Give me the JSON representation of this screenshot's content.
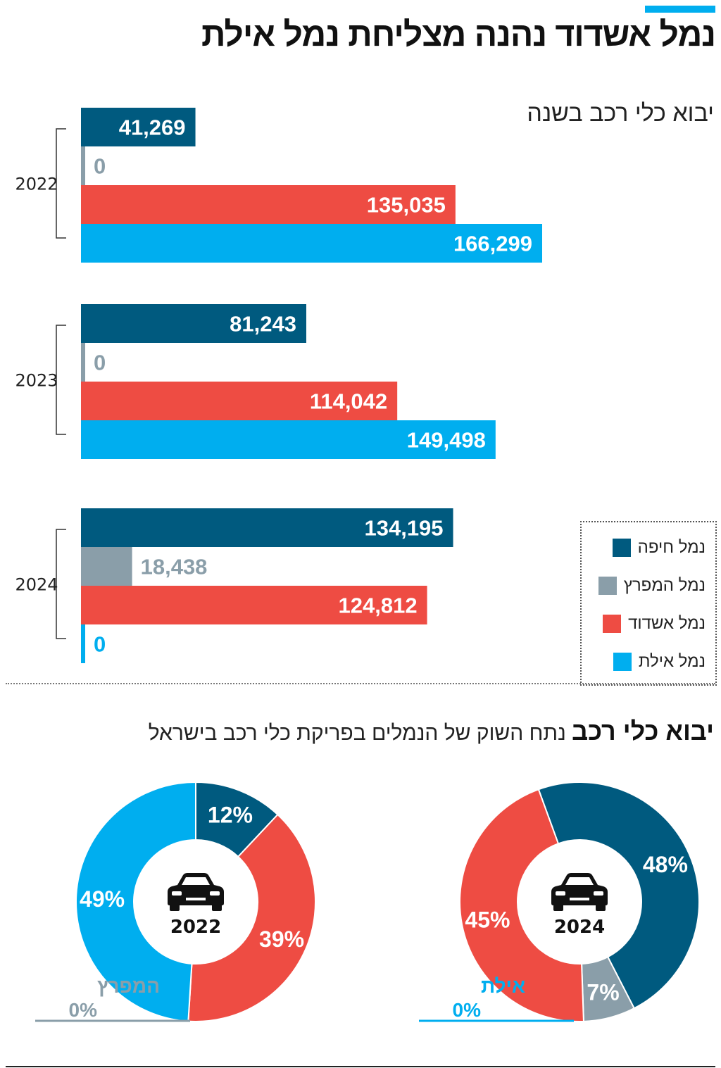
{
  "header": {
    "title": "נמל אשדוד נהנה מצליחת נמל אילת",
    "accent_color": "#00aeef"
  },
  "legend": {
    "items": [
      {
        "label": "נמל חיפה",
        "color": "#005a7f"
      },
      {
        "label": "נמל המפרץ",
        "color": "#8a9ea9"
      },
      {
        "label": "נמל אשדוד",
        "color": "#ee4c43"
      },
      {
        "label": "נמל אילת",
        "color": "#00aeef"
      }
    ]
  },
  "chart_data": [
    {
      "type": "bar",
      "orientation": "horizontal",
      "title": "יבוא כלי רכב בשנה",
      "categories": [
        "2022",
        "2023",
        "2024"
      ],
      "series": [
        {
          "name": "נמל חיפה",
          "color": "#005a7f",
          "values": [
            41269,
            81243,
            134195
          ],
          "labels": [
            "41,269",
            "81,243",
            "134,195"
          ]
        },
        {
          "name": "נמל המפרץ",
          "color": "#8a9ea9",
          "values": [
            0,
            0,
            18438
          ],
          "labels": [
            "0",
            "0",
            "18,438"
          ]
        },
        {
          "name": "נמל אשדוד",
          "color": "#ee4c43",
          "values": [
            135035,
            114042,
            124812
          ],
          "labels": [
            "135,035",
            "114,042",
            "124,812"
          ]
        },
        {
          "name": "נמל אילת",
          "color": "#00aeef",
          "values": [
            166299,
            149498,
            0
          ],
          "labels": [
            "166,299",
            "149,498",
            "0"
          ]
        }
      ],
      "xlim": [
        0,
        166299
      ]
    },
    {
      "type": "pie",
      "variant": "donut",
      "title_bold": "יבוא כלי רכב",
      "title": "נתח השוק של הנמלים בפריקת כלי רכב בישראל",
      "donuts": [
        {
          "year": "2022",
          "slices": [
            {
              "name": "נמל חיפה",
              "value": 12,
              "label": "12%",
              "color": "#005a7f"
            },
            {
              "name": "נמל אשדוד",
              "value": 39,
              "label": "39%",
              "color": "#ee4c43"
            },
            {
              "name": "נמל אילת",
              "value": 49,
              "label": "49%",
              "color": "#00aeef"
            }
          ],
          "zero_note": {
            "name": "המפרץ",
            "label": "0%",
            "color": "#8a9ea9"
          }
        },
        {
          "year": "2024",
          "slices": [
            {
              "name": "נמל חיפה",
              "value": 48,
              "label": "48%",
              "color": "#005a7f"
            },
            {
              "name": "נמל המפרץ",
              "value": 7,
              "label": "7%",
              "color": "#8a9ea9"
            },
            {
              "name": "נמל אשדוד",
              "value": 45,
              "label": "45%",
              "color": "#ee4c43"
            }
          ],
          "zero_note": {
            "name": "אילת",
            "label": "0%",
            "color": "#00aeef"
          }
        }
      ]
    }
  ]
}
